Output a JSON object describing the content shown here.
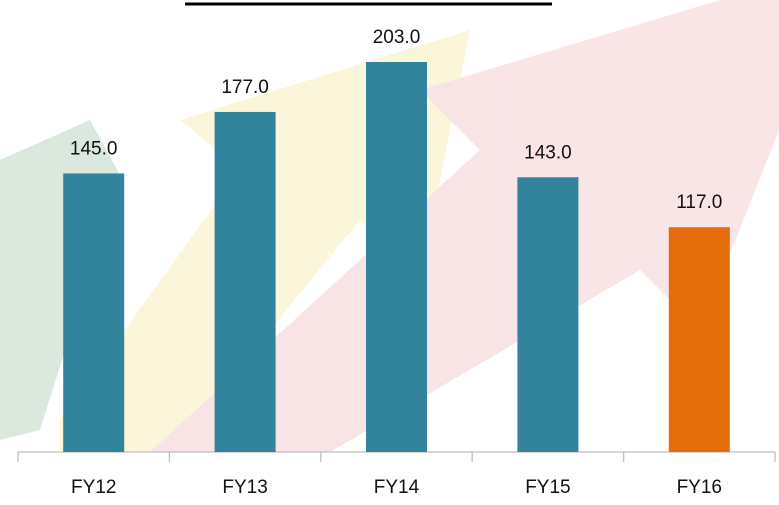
{
  "chart_data": {
    "type": "bar",
    "categories": [
      "FY12",
      "FY13",
      "FY14",
      "FY15",
      "FY16"
    ],
    "values": [
      145,
      177,
      203,
      143,
      117
    ],
    "value_labels": [
      "145.0",
      "177.0",
      "203.0",
      "143.0",
      "117.0"
    ],
    "colors": [
      "#31849b",
      "#31849b",
      "#31849b",
      "#31849b",
      "#e46c0a"
    ],
    "grid": false
  }
}
